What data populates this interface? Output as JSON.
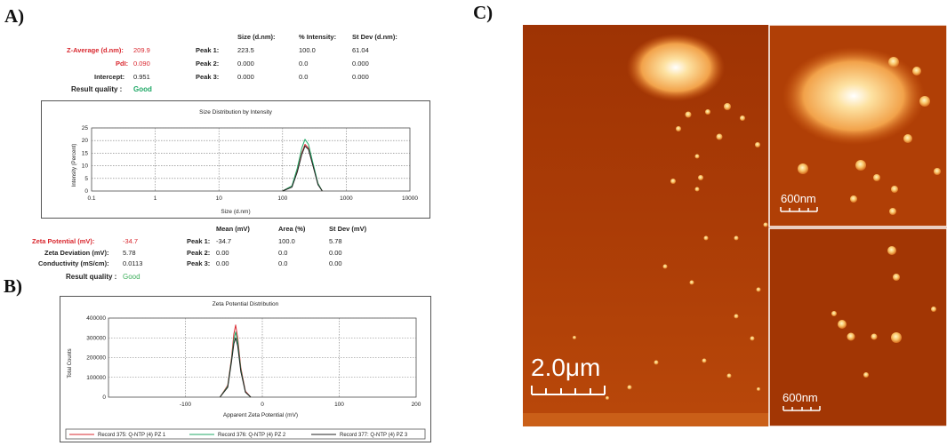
{
  "panels": {
    "a": "A)",
    "b": "B)",
    "c": "C)"
  },
  "size_table": {
    "headers": [
      "Size (d.nm):",
      "% Intensity:",
      "St Dev (d.nm):"
    ],
    "left": [
      {
        "label": "Z-Average (d.nm):",
        "value": "209.9"
      },
      {
        "label": "PdI:",
        "value": "0.090"
      },
      {
        "label": "Intercept:",
        "value": "0.951"
      }
    ],
    "peaks": [
      {
        "label": "Peak 1:",
        "size": "223.5",
        "intensity": "100.0",
        "stdev": "61.04"
      },
      {
        "label": "Peak 2:",
        "size": "0.000",
        "intensity": "0.0",
        "stdev": "0.000"
      },
      {
        "label": "Peak 3:",
        "size": "0.000",
        "intensity": "0.0",
        "stdev": "0.000"
      }
    ],
    "quality_label": "Result quality :",
    "quality_value": "Good"
  },
  "zeta_table": {
    "headers": [
      "Mean (mV)",
      "Area (%)",
      "St Dev (mV)"
    ],
    "left": [
      {
        "label": "Zeta Potential (mV):",
        "value": "-34.7"
      },
      {
        "label": "Zeta Deviation (mV):",
        "value": "5.78"
      },
      {
        "label": "Conductivity (mS/cm):",
        "value": "0.0113"
      }
    ],
    "peaks": [
      {
        "label": "Peak 1:",
        "mean": "-34.7",
        "area": "100.0",
        "stdev": "5.78"
      },
      {
        "label": "Peak 2:",
        "mean": "0.00",
        "area": "0.0",
        "stdev": "0.00"
      },
      {
        "label": "Peak 3:",
        "mean": "0.00",
        "area": "0.0",
        "stdev": "0.00"
      }
    ],
    "quality_label": "Result quality :",
    "quality_value": "Good"
  },
  "colors": {
    "red": "#d9282f",
    "green": "#1fa866",
    "black": "#222222",
    "afm_bg": "#a83a06"
  },
  "chart_data": [
    {
      "type": "line",
      "title": "Size Distribution by Intensity",
      "xlabel": "Size (d.nm)",
      "ylabel": "Intensity (Percent)",
      "xscale": "log",
      "xlim": [
        0.1,
        10000
      ],
      "ylim": [
        0,
        25
      ],
      "xticks": [
        "0.1",
        "1",
        "10",
        "100",
        "1000",
        "10000"
      ],
      "yticks": [
        "0",
        "5",
        "10",
        "15",
        "20",
        "25"
      ],
      "grid": true,
      "series": [
        {
          "color": "#d9282f",
          "x": [
            100,
            140,
            170,
            200,
            225,
            255,
            300,
            360,
            420
          ],
          "y": [
            0,
            2,
            8,
            15,
            18.5,
            17,
            10,
            3,
            0
          ]
        },
        {
          "color": "#1fa866",
          "x": [
            100,
            140,
            170,
            200,
            225,
            255,
            300,
            360,
            420
          ],
          "y": [
            0,
            2,
            9,
            17,
            20.5,
            18.5,
            11,
            3,
            0
          ]
        },
        {
          "color": "#222222",
          "x": [
            100,
            140,
            170,
            200,
            225,
            255,
            300,
            360,
            420
          ],
          "y": [
            0,
            1.5,
            7.5,
            14.5,
            17.8,
            16.5,
            10,
            2.5,
            0
          ]
        }
      ]
    },
    {
      "type": "line",
      "title": "Zeta Potential Distribution",
      "xlabel": "Apparent Zeta Potential (mV)",
      "ylabel": "Total Counts",
      "xlim": [
        -200,
        200
      ],
      "ylim": [
        0,
        400000
      ],
      "xticks": [
        "-100",
        "0",
        "100",
        "200"
      ],
      "yticks": [
        "0",
        "100000",
        "200000",
        "300000",
        "400000"
      ],
      "grid": true,
      "series": [
        {
          "name": "Record 375: Q-NTP (4) PZ 1",
          "color": "#d9282f",
          "x": [
            -55,
            -45,
            -40,
            -37,
            -34.7,
            -32,
            -28,
            -22,
            -15
          ],
          "y": [
            0,
            60000,
            200000,
            320000,
            365000,
            300000,
            150000,
            30000,
            0
          ]
        },
        {
          "name": "Record 376: Q-NTP (4) PZ 2",
          "color": "#1fa866",
          "x": [
            -55,
            -45,
            -40,
            -37,
            -34.7,
            -32,
            -28,
            -22,
            -15
          ],
          "y": [
            0,
            55000,
            190000,
            290000,
            330000,
            280000,
            140000,
            25000,
            0
          ]
        },
        {
          "name": "Record 377: Q-NTP (4) PZ 3",
          "color": "#222222",
          "x": [
            -55,
            -45,
            -40,
            -37,
            -34.7,
            -32,
            -28,
            -22,
            -15
          ],
          "y": [
            0,
            50000,
            180000,
            270000,
            300000,
            260000,
            130000,
            25000,
            0
          ]
        }
      ]
    }
  ],
  "afm": {
    "main_scale": "2.0μm",
    "inset_top_scale": "600nm",
    "inset_bottom_scale": "600nm"
  }
}
